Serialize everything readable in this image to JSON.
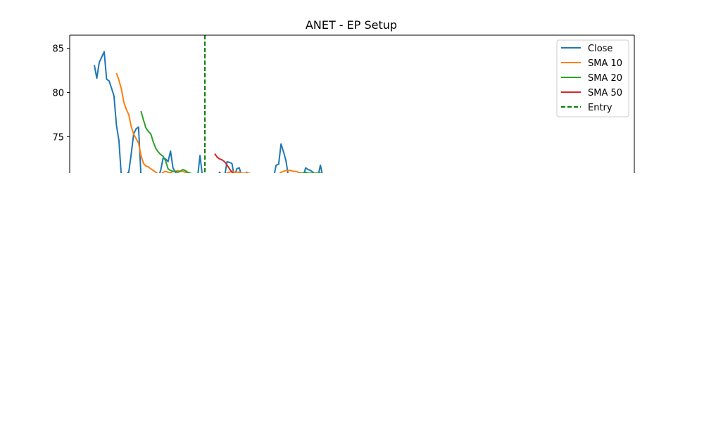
{
  "chart_data": {
    "type": "line",
    "title": "ANET - EP Setup",
    "xlabel": "",
    "ylabel": "",
    "ylim": [
      70.9,
      86.5
    ],
    "y_ticks": [
      75,
      80,
      85
    ],
    "grid": false,
    "legend_position": "top-right",
    "series": [
      {
        "name": "Close",
        "color": "#1f77b4",
        "style": "solid",
        "x": [
          0,
          1,
          2,
          3,
          4,
          5,
          6,
          7,
          8,
          9,
          10,
          11,
          12,
          13,
          14,
          15,
          16,
          17,
          18,
          19,
          20,
          21,
          22,
          23,
          24,
          25,
          26,
          27,
          28,
          29,
          30,
          31,
          32,
          33,
          34,
          35,
          36,
          37,
          38,
          39,
          40,
          41,
          42,
          43,
          44,
          45,
          46,
          47,
          48,
          49,
          50,
          51,
          52,
          53,
          54,
          55,
          56,
          57,
          58,
          59,
          60,
          61,
          62,
          63,
          64,
          65,
          66,
          67,
          68,
          69,
          70,
          71,
          72,
          73,
          74,
          75,
          76,
          77,
          78,
          79,
          80,
          81,
          82,
          83,
          84,
          85,
          86,
          87,
          88,
          89,
          90,
          91,
          92,
          93,
          94
        ],
        "values": [
          83.1,
          81.6,
          83.4,
          84.0,
          84.6,
          81.5,
          81.3,
          80.5,
          79.6,
          76.3,
          74.6,
          70.5,
          70.6,
          70.8,
          71.0,
          73.0,
          75.3,
          75.9,
          76.1,
          70.5,
          70.5,
          70.4,
          70.4,
          70.5,
          70.5,
          70.5,
          70.4,
          71.2,
          72.6,
          72.5,
          72.2,
          73.4,
          71.5,
          71.0,
          70.5,
          70.5,
          70.5,
          70.5,
          70.4,
          70.5,
          70.5,
          70.5,
          70.4,
          72.9,
          70.5,
          70.5,
          70.5,
          70.5,
          70.5,
          70.5,
          70.5,
          71.0,
          70.5,
          70.5,
          72.2,
          72.1,
          72.0,
          70.5,
          71.4,
          71.5,
          70.5,
          70.5,
          71.0,
          70.5,
          70.5,
          70.5,
          70.5,
          70.5,
          70.5,
          70.5,
          70.5,
          70.5,
          70.5,
          70.5,
          71.8,
          71.9,
          74.2,
          73.3,
          72.3,
          70.5,
          70.5,
          70.5,
          70.5,
          70.5,
          70.5,
          70.5,
          71.5,
          71.3,
          71.2,
          71.0,
          70.5,
          70.5,
          71.8,
          70.5,
          70.5
        ]
      },
      {
        "name": "SMA 10",
        "color": "#ff7f0e",
        "style": "solid",
        "x": [
          9,
          10,
          11,
          12,
          13,
          14,
          15,
          16,
          17,
          18,
          19,
          20,
          21,
          22,
          23,
          24,
          25,
          26,
          27,
          28,
          29,
          30,
          31,
          32,
          33,
          34,
          35,
          36,
          37,
          38,
          39,
          40,
          41,
          42,
          43,
          44,
          45,
          46,
          47,
          48,
          49,
          50,
          51,
          52,
          53,
          54,
          55,
          56,
          57,
          58,
          59,
          60,
          61,
          62,
          63,
          64,
          65,
          66,
          67,
          68,
          69,
          70,
          71,
          72,
          73,
          74,
          75,
          76,
          77,
          78,
          79,
          80,
          81,
          82,
          83,
          84,
          85,
          86,
          87,
          88,
          89,
          90,
          91,
          92,
          93,
          94
        ],
        "values": [
          82.2,
          81.4,
          80.4,
          78.9,
          78.1,
          77.5,
          76.2,
          75.3,
          74.8,
          74.3,
          72.9,
          72.0,
          71.7,
          71.6,
          71.4,
          71.2,
          71.0,
          70.8,
          70.7,
          71.0,
          71.1,
          71.0,
          70.9,
          71.1,
          71.1,
          71.2,
          71.1,
          71.1,
          71.0,
          70.9,
          70.8,
          70.7,
          70.6,
          70.7,
          70.7,
          70.6,
          70.6,
          70.6,
          70.5,
          70.5,
          70.5,
          70.5,
          70.6,
          70.6,
          70.8,
          70.9,
          71.0,
          71.1,
          71.0,
          71.0,
          71.0,
          70.9,
          70.9,
          70.9,
          70.9,
          70.8,
          70.7,
          70.6,
          70.6,
          70.5,
          70.5,
          70.5,
          70.5,
          70.5,
          70.5,
          70.6,
          70.7,
          71.0,
          71.1,
          71.2,
          71.2,
          71.2,
          71.1,
          71.1,
          71.0,
          70.9,
          70.9,
          70.9,
          70.8,
          70.8,
          70.7,
          70.6,
          70.6,
          70.5,
          70.5,
          70.5
        ]
      },
      {
        "name": "SMA 20",
        "color": "#2ca02c",
        "style": "solid",
        "x": [
          19,
          20,
          21,
          22,
          23,
          24,
          25,
          26,
          27,
          28,
          29,
          30,
          31,
          32,
          33,
          34,
          35,
          36,
          37,
          38,
          39,
          40,
          41,
          42,
          43,
          44,
          45,
          46,
          47,
          48,
          49,
          50,
          51,
          52,
          53,
          54,
          55,
          56,
          57,
          58,
          59,
          60,
          61,
          62,
          63,
          64,
          65,
          66,
          67,
          68,
          69,
          70,
          71,
          72,
          73,
          74,
          75,
          76,
          77,
          78,
          79,
          80,
          81,
          82,
          83,
          84,
          85,
          86,
          87,
          88,
          89,
          90,
          91,
          92,
          93,
          94
        ],
        "values": [
          77.9,
          76.9,
          76.0,
          75.6,
          75.3,
          74.4,
          73.7,
          73.3,
          73.0,
          72.8,
          72.3,
          71.4,
          71.2,
          71.1,
          71.1,
          71.0,
          71.1,
          71.3,
          71.2,
          71.0,
          70.9,
          70.8,
          70.7,
          70.7,
          70.7,
          70.6,
          70.6,
          70.7,
          70.7,
          70.8,
          70.8,
          70.8,
          70.7,
          70.7,
          70.7,
          70.7,
          70.6,
          70.6,
          70.6,
          70.6,
          70.6,
          70.5,
          70.5,
          70.5,
          70.5,
          70.5,
          70.5,
          70.5,
          70.5,
          70.5,
          70.5,
          70.5,
          70.5,
          70.5,
          70.5,
          70.6,
          70.6,
          70.6,
          70.7,
          70.7,
          70.7,
          70.8,
          70.8,
          70.8,
          70.8,
          70.9,
          70.9,
          71.0,
          70.9,
          70.9,
          70.9,
          70.9,
          70.9,
          70.9,
          70.8,
          70.7
        ]
      },
      {
        "name": "SMA 50",
        "color": "#d62728",
        "style": "solid",
        "x": [
          49,
          50,
          51,
          52,
          53,
          54,
          55,
          56,
          57,
          58,
          59,
          60,
          61,
          62,
          63,
          64,
          65,
          66,
          67,
          68,
          69,
          70,
          71,
          72,
          73,
          74,
          75,
          76,
          77,
          78,
          79,
          80,
          81,
          82,
          83,
          84,
          85,
          86,
          87,
          88,
          89,
          90,
          91,
          92,
          93,
          94
        ],
        "values": [
          73.1,
          72.7,
          72.5,
          72.4,
          72.2,
          71.8,
          71.4,
          71.0,
          70.8,
          70.6,
          70.5,
          70.5,
          70.5,
          70.5,
          70.5,
          70.5,
          70.5,
          70.5,
          70.5,
          70.5,
          70.5,
          70.5,
          70.5,
          70.5,
          70.5,
          70.5,
          70.5,
          70.5,
          70.5,
          70.5,
          70.5,
          70.5,
          70.5,
          70.5,
          70.5,
          70.5,
          70.5,
          70.5,
          70.5,
          70.5,
          70.5,
          70.5,
          70.5,
          70.5,
          70.5,
          70.5
        ]
      }
    ],
    "entry": {
      "name": "Entry",
      "color": "#008000",
      "style": "dashed",
      "x": 45
    }
  }
}
